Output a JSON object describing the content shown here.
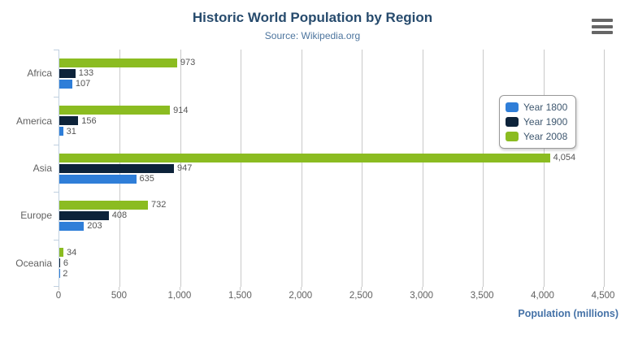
{
  "title": "Historic World Population by Region",
  "subtitle": "Source: Wikipedia.org",
  "chart_data": {
    "type": "bar",
    "orientation": "horizontal",
    "title": "Historic World Population by Region",
    "subtitle": "Source: Wikipedia.org",
    "categories": [
      "Africa",
      "America",
      "Asia",
      "Europe",
      "Oceania"
    ],
    "series": [
      {
        "name": "Year 1800",
        "color": "#2f7ed8",
        "values": [
          107,
          31,
          635,
          203,
          2
        ]
      },
      {
        "name": "Year 1900",
        "color": "#0d233a",
        "values": [
          133,
          156,
          947,
          408,
          6
        ]
      },
      {
        "name": "Year 2008",
        "color": "#8bbc21",
        "values": [
          973,
          914,
          4054,
          732,
          34
        ]
      }
    ],
    "series_order_top_to_bottom": [
      "Year 2008",
      "Year 1900",
      "Year 1800"
    ],
    "xlabel": "Population (millions)",
    "xlim": [
      0,
      4500
    ],
    "x_ticks": [
      "0",
      "500",
      "1,000",
      "1,500",
      "2,000",
      "2,500",
      "3,000",
      "3,500",
      "4,000",
      "4,500"
    ],
    "grid": true,
    "data_labels": true,
    "legend_position": "right"
  },
  "legend": {
    "items": [
      "Year 1800",
      "Year 1900",
      "Year 2008"
    ]
  },
  "icons": {
    "context_menu": "hamburger-icon"
  },
  "colors": {
    "title": "#274b6d",
    "subtitle": "#4d759e",
    "axis_title": "#4572a7",
    "category_label": "#606060",
    "tick_label": "#606060",
    "data_label": "#555555",
    "gridline": "#c9c9c9",
    "axis_line": "#c0d0e0",
    "legend_text": "#3e576f",
    "legend_border": "#999999",
    "menu_icon": "#666666",
    "series_blue": "#2f7ed8",
    "series_navy": "#0d233a",
    "series_green": "#8bbc21"
  }
}
